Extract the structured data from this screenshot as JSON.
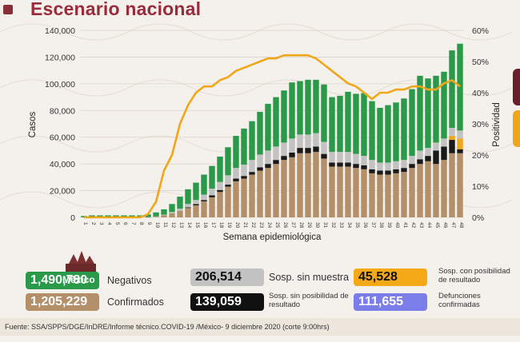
{
  "title": "Escenario nacional",
  "chart_data": {
    "type": "bar",
    "stacked": true,
    "xlabel": "Semana epidemiológica",
    "ylabel": "Casos",
    "y2label": "Positividad",
    "ylim": [
      0,
      140000
    ],
    "y2lim": [
      0,
      60
    ],
    "yticks": [
      "0",
      "20,000",
      "40,000",
      "60,000",
      "80,000",
      "100,000",
      "120,000",
      "140,000"
    ],
    "y2ticks": [
      "0%",
      "10%",
      "20%",
      "30%",
      "40%",
      "50%",
      "60%"
    ],
    "categories": [
      "1",
      "2",
      "3",
      "4",
      "5",
      "6",
      "7",
      "8",
      "9",
      "10",
      "11",
      "12",
      "13",
      "14",
      "15",
      "16",
      "17",
      "18",
      "19",
      "20",
      "21",
      "22",
      "23",
      "24",
      "25",
      "26",
      "27",
      "28",
      "29",
      "30",
      "31",
      "32",
      "33",
      "34",
      "35",
      "36",
      "37",
      "38",
      "39",
      "40",
      "41",
      "42",
      "43",
      "44",
      "45",
      "46",
      "47",
      "48"
    ],
    "series": [
      {
        "name": "Confirmados",
        "color": "#b3906a",
        "values": [
          0,
          0,
          0,
          0,
          0,
          0,
          0,
          0,
          100,
          500,
          1500,
          3000,
          5000,
          7000,
          9000,
          12000,
          15000,
          19000,
          23000,
          27000,
          29000,
          32000,
          35000,
          37000,
          40000,
          43000,
          45000,
          48000,
          48000,
          49000,
          44000,
          38000,
          38000,
          38000,
          37000,
          36000,
          33000,
          32000,
          32000,
          33000,
          34000,
          37000,
          40000,
          42000,
          40000,
          43000,
          48000,
          48000
        ]
      },
      {
        "name": "Sosp. sin posibilidad de resultado",
        "color": "#1a1a1a",
        "values": [
          0,
          0,
          0,
          0,
          0,
          0,
          0,
          0,
          0,
          0,
          0,
          0,
          0,
          500,
          1000,
          1000,
          1500,
          1500,
          1500,
          2000,
          2000,
          2000,
          2500,
          3000,
          3000,
          3000,
          3500,
          4000,
          4000,
          4000,
          3500,
          3000,
          3000,
          3000,
          3000,
          3000,
          3000,
          3000,
          3000,
          3000,
          3000,
          3000,
          3500,
          4000,
          10000,
          10000,
          10000,
          3000
        ]
      },
      {
        "name": "Sosp. con posibilidad de resultado",
        "color": "#f0a619",
        "values": [
          0,
          0,
          0,
          0,
          0,
          0,
          0,
          0,
          0,
          0,
          0,
          0,
          0,
          0,
          0,
          0,
          0,
          0,
          0,
          0,
          0,
          0,
          0,
          0,
          0,
          0,
          0,
          0,
          0,
          0,
          0,
          0,
          0,
          0,
          0,
          0,
          0,
          0,
          0,
          0,
          0,
          0,
          0,
          0,
          0,
          0,
          3000,
          8000
        ]
      },
      {
        "name": "Sosp. sin muestra",
        "color": "#c2c2c2",
        "values": [
          0,
          0,
          0,
          0,
          0,
          0,
          0,
          0,
          100,
          200,
          500,
          1000,
          1500,
          2500,
          3000,
          4000,
          5000,
          6000,
          7000,
          8000,
          8500,
          9000,
          9500,
          10000,
          10000,
          10000,
          10500,
          10000,
          10000,
          10000,
          9000,
          8000,
          8000,
          8000,
          7500,
          7000,
          7000,
          6000,
          6000,
          6000,
          6000,
          6000,
          6500,
          6000,
          6000,
          6000,
          6000,
          6000
        ]
      },
      {
        "name": "Negativos",
        "color": "#2a9a4a",
        "values": [
          1000,
          1500,
          1500,
          1500,
          1500,
          1500,
          1500,
          1500,
          2000,
          3000,
          4000,
          6000,
          9000,
          11000,
          13000,
          15000,
          17000,
          19000,
          21000,
          24000,
          27000,
          29000,
          32000,
          35000,
          37000,
          39000,
          42000,
          40000,
          41000,
          40000,
          43000,
          41000,
          42000,
          45000,
          45000,
          47000,
          44000,
          41000,
          43000,
          44000,
          46000,
          50000,
          56000,
          52000,
          50000,
          50000,
          58000,
          65000
        ]
      }
    ],
    "positividad": [
      0,
      0,
      0,
      0,
      0,
      0,
      0,
      0,
      1,
      5,
      15,
      20,
      30,
      36,
      40,
      42,
      42,
      44,
      45,
      47,
      48,
      49,
      50,
      51,
      51,
      52,
      52,
      52,
      52,
      51,
      49,
      47,
      45,
      43,
      42,
      40,
      38,
      40,
      40,
      41,
      41,
      42,
      42,
      41,
      41,
      43,
      44,
      42
    ]
  },
  "summary": {
    "negativos": {
      "value": "1,490,780",
      "label": "Negativos",
      "color": "#2a9a4a"
    },
    "confirmados": {
      "value": "1,205,229",
      "label": "Confirmados",
      "color": "#b3906a"
    },
    "sin_muestra": {
      "value": "206,514",
      "label": "Sosp. sin muestra",
      "color": "#c2c2c2"
    },
    "sin_posibilidad": {
      "value": "139,059",
      "label": "Sosp. sin posibilidad de resultado",
      "color": "#111111"
    },
    "con_posibilidad": {
      "value": "45,528",
      "label": "Sosp. con posibilidad de resultado",
      "color": "#f5a916"
    },
    "defunciones": {
      "value": "111,655",
      "label": "Defunciones confirmadas",
      "color": "#7b7ee8"
    }
  },
  "logo_text": "México",
  "source": "Fuente: SSA/SPPS/DGE/InDRE/Informe técnico.COVID-19 /México- 9 diciembre 2020 (corte 9:00hrs)"
}
